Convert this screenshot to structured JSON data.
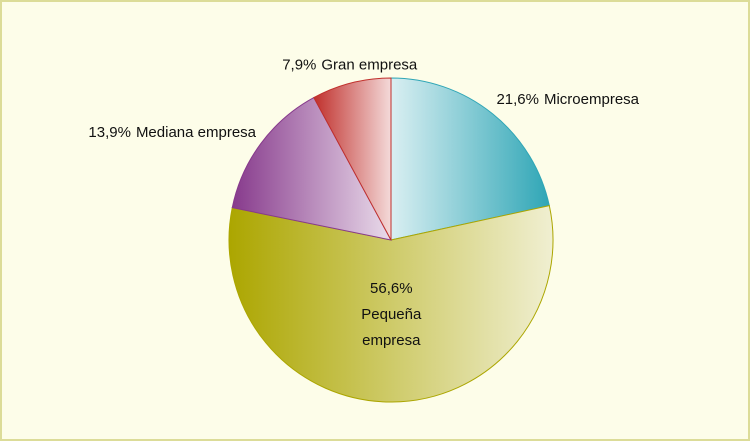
{
  "chart_data": {
    "type": "pie",
    "categories": [
      "Microempresa",
      "Pequeña empresa",
      "Mediana empresa",
      "Gran empresa"
    ],
    "values": [
      21.6,
      56.6,
      13.9,
      7.9
    ],
    "value_labels": [
      "21,6%",
      "56,6%",
      "13,9%",
      "7,9%"
    ],
    "colors": [
      "#2fa6b6",
      "#aca600",
      "#873a8c",
      "#c0302c"
    ]
  }
}
